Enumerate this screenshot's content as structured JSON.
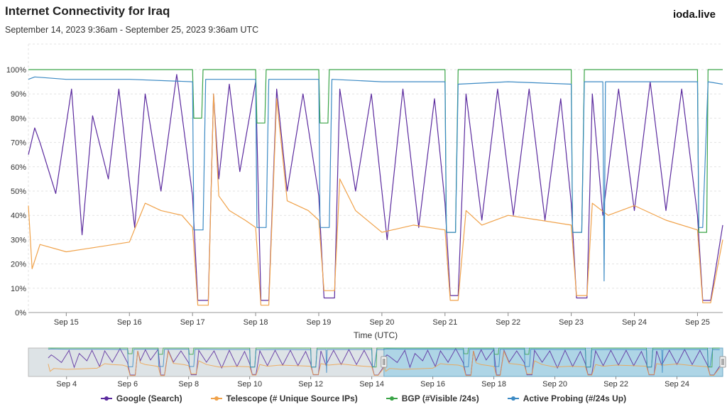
{
  "header": {
    "title": "Internet Connectivity for Iraq",
    "subtitle": "September 14, 2023 9:36am - September 25, 2023 9:36am UTC",
    "brand": "ioda.live"
  },
  "chart_data": {
    "type": "line",
    "xlabel": "Time (UTC)",
    "ylabel": "",
    "ylim": [
      0,
      100
    ],
    "xlim": [
      "2023-09-14T09:36",
      "2023-09-25T09:36"
    ],
    "y_ticks": [
      "0%",
      "10%",
      "20%",
      "30%",
      "40%",
      "50%",
      "60%",
      "70%",
      "80%",
      "90%",
      "100%"
    ],
    "x_ticks": [
      "Sep 15",
      "Sep 16",
      "Sep 17",
      "Sep 18",
      "Sep 19",
      "Sep 20",
      "Sep 21",
      "Sep 22",
      "Sep 23",
      "Sep 24",
      "Sep 25"
    ],
    "grid": true,
    "series": [
      {
        "name": "Google (Search)",
        "color": "#5b2a9e",
        "x": [
          "2023-09-14 09:36",
          "2023-09-14 12:00",
          "2023-09-14 14:00",
          "2023-09-14 20:00",
          "2023-09-15 02:00",
          "2023-09-15 06:00",
          "2023-09-15 10:00",
          "2023-09-15 16:00",
          "2023-09-15 20:00",
          "2023-09-16 02:00",
          "2023-09-16 06:00",
          "2023-09-16 12:00",
          "2023-09-16 18:00",
          "2023-09-17 00:00",
          "2023-09-17 02:00",
          "2023-09-17 06:00",
          "2023-09-17 08:00",
          "2023-09-17 10:00",
          "2023-09-17 14:00",
          "2023-09-17 18:00",
          "2023-09-18 00:00",
          "2023-09-18 02:00",
          "2023-09-18 05:00",
          "2023-09-18 08:00",
          "2023-09-18 12:00",
          "2023-09-18 18:00",
          "2023-09-19 00:00",
          "2023-09-19 02:00",
          "2023-09-19 06:00",
          "2023-09-19 08:00",
          "2023-09-19 14:00",
          "2023-09-19 20:00",
          "2023-09-20 02:00",
          "2023-09-20 08:00",
          "2023-09-20 14:00",
          "2023-09-20 20:00",
          "2023-09-21 00:00",
          "2023-09-21 02:00",
          "2023-09-21 05:00",
          "2023-09-21 08:00",
          "2023-09-21 14:00",
          "2023-09-21 20:00",
          "2023-09-22 02:00",
          "2023-09-22 08:00",
          "2023-09-22 14:00",
          "2023-09-22 20:00",
          "2023-09-23 00:00",
          "2023-09-23 02:00",
          "2023-09-23 06:00",
          "2023-09-23 08:00",
          "2023-09-23 12:00",
          "2023-09-23 18:00",
          "2023-09-24 00:00",
          "2023-09-24 06:00",
          "2023-09-24 12:00",
          "2023-09-24 18:00",
          "2023-09-25 00:00",
          "2023-09-25 02:00",
          "2023-09-25 05:00",
          "2023-09-25 09:36"
        ],
        "values": [
          65,
          76,
          70,
          49,
          92,
          32,
          81,
          55,
          92,
          35,
          90,
          50,
          98,
          48,
          5,
          5,
          90,
          55,
          94,
          58,
          95,
          5,
          5,
          92,
          50,
          90,
          48,
          6,
          6,
          92,
          50,
          90,
          30,
          92,
          35,
          88,
          45,
          7,
          7,
          90,
          38,
          92,
          40,
          92,
          38,
          88,
          45,
          6,
          6,
          90,
          40,
          92,
          42,
          95,
          42,
          92,
          40,
          5,
          5,
          36
        ]
      },
      {
        "name": "Telescope (# Unique Source IPs)",
        "color": "#f0a24a",
        "x": [
          "2023-09-14 09:36",
          "2023-09-14 11:00",
          "2023-09-14 14:00",
          "2023-09-15 00:00",
          "2023-09-15 12:00",
          "2023-09-16 00:00",
          "2023-09-16 06:00",
          "2023-09-16 12:00",
          "2023-09-16 20:00",
          "2023-09-17 00:00",
          "2023-09-17 02:00",
          "2023-09-17 06:00",
          "2023-09-17 08:00",
          "2023-09-17 10:00",
          "2023-09-17 14:00",
          "2023-09-17 20:00",
          "2023-09-18 00:00",
          "2023-09-18 02:00",
          "2023-09-18 05:00",
          "2023-09-18 08:00",
          "2023-09-18 12:00",
          "2023-09-18 20:00",
          "2023-09-19 00:00",
          "2023-09-19 02:00",
          "2023-09-19 06:00",
          "2023-09-19 08:00",
          "2023-09-19 14:00",
          "2023-09-20 00:00",
          "2023-09-20 12:00",
          "2023-09-21 00:00",
          "2023-09-21 02:00",
          "2023-09-21 05:00",
          "2023-09-21 08:00",
          "2023-09-21 14:00",
          "2023-09-22 00:00",
          "2023-09-22 12:00",
          "2023-09-23 00:00",
          "2023-09-23 02:00",
          "2023-09-23 06:00",
          "2023-09-23 08:00",
          "2023-09-23 14:00",
          "2023-09-24 00:00",
          "2023-09-24 12:00",
          "2023-09-25 00:00",
          "2023-09-25 02:00",
          "2023-09-25 05:00",
          "2023-09-25 09:36"
        ],
        "values": [
          44,
          18,
          28,
          25,
          27,
          29,
          45,
          42,
          40,
          35,
          3,
          3,
          90,
          48,
          42,
          38,
          35,
          3,
          3,
          88,
          46,
          42,
          38,
          9,
          9,
          55,
          42,
          33,
          36,
          34,
          5,
          5,
          42,
          36,
          40,
          38,
          36,
          7,
          7,
          45,
          40,
          44,
          38,
          34,
          4,
          4,
          30
        ]
      },
      {
        "name": "BGP (#Visible /24s)",
        "color": "#3aa447",
        "x": [
          "2023-09-14 09:36",
          "2023-09-17 00:00",
          "2023-09-17 00:30",
          "2023-09-17 02:00",
          "2023-09-17 03:30",
          "2023-09-17 04:00",
          "2023-09-18 00:00",
          "2023-09-18 00:30",
          "2023-09-18 02:00",
          "2023-09-18 03:30",
          "2023-09-18 04:00",
          "2023-09-19 00:00",
          "2023-09-19 00:30",
          "2023-09-19 02:00",
          "2023-09-19 03:30",
          "2023-09-19 04:00",
          "2023-09-21 00:00",
          "2023-09-21 00:30",
          "2023-09-21 02:00",
          "2023-09-21 04:00",
          "2023-09-21 05:00",
          "2023-09-23 00:00",
          "2023-09-23 00:30",
          "2023-09-23 02:00",
          "2023-09-23 04:00",
          "2023-09-23 05:00",
          "2023-09-25 00:00",
          "2023-09-25 00:30",
          "2023-09-25 02:00",
          "2023-09-25 03:30",
          "2023-09-25 04:00",
          "2023-09-25 09:36"
        ],
        "values": [
          100,
          100,
          80,
          80,
          80,
          100,
          100,
          78,
          78,
          78,
          100,
          100,
          78,
          78,
          78,
          100,
          100,
          33,
          33,
          33,
          100,
          100,
          33,
          33,
          33,
          100,
          100,
          33,
          33,
          33,
          100,
          100
        ]
      },
      {
        "name": "Active Probing (#/24s Up)",
        "color": "#3c8ac4",
        "x": [
          "2023-09-14 09:36",
          "2023-09-14 12:00",
          "2023-09-15 00:00",
          "2023-09-16 00:00",
          "2023-09-17 00:00",
          "2023-09-17 00:30",
          "2023-09-17 02:00",
          "2023-09-17 04:00",
          "2023-09-17 05:00",
          "2023-09-18 00:00",
          "2023-09-18 00:30",
          "2023-09-18 02:00",
          "2023-09-18 04:00",
          "2023-09-18 05:00",
          "2023-09-19 00:00",
          "2023-09-19 00:30",
          "2023-09-19 02:00",
          "2023-09-19 04:00",
          "2023-09-19 05:00",
          "2023-09-20 00:00",
          "2023-09-21 00:00",
          "2023-09-21 00:30",
          "2023-09-21 02:00",
          "2023-09-21 04:00",
          "2023-09-21 05:00",
          "2023-09-22 00:00",
          "2023-09-23 00:00",
          "2023-09-23 00:30",
          "2023-09-23 02:00",
          "2023-09-23 04:00",
          "2023-09-23 05:00",
          "2023-09-23 12:00",
          "2023-09-23 12:30",
          "2023-09-23 13:00",
          "2023-09-24 00:00",
          "2023-09-25 00:00",
          "2023-09-25 00:30",
          "2023-09-25 02:00",
          "2023-09-25 04:00",
          "2023-09-25 09:36"
        ],
        "values": [
          96,
          97,
          96,
          96,
          95,
          34,
          34,
          34,
          96,
          96,
          35,
          35,
          35,
          96,
          96,
          35,
          35,
          35,
          96,
          95,
          95,
          33,
          33,
          33,
          94,
          95,
          94,
          33,
          33,
          33,
          95,
          95,
          13,
          95,
          95,
          95,
          35,
          35,
          95,
          94
        ]
      }
    ],
    "navigator": {
      "x_ticks": [
        "Sep 4",
        "Sep 6",
        "Sep 8",
        "Sep 10",
        "Sep 12",
        "Sep 14",
        "Sep 16",
        "Sep 18",
        "Sep 20",
        "Sep 22",
        "Sep 24"
      ]
    }
  },
  "legend": [
    {
      "label": "Google (Search)",
      "color": "#5b2a9e"
    },
    {
      "label": "Telescope (# Unique Source IPs)",
      "color": "#f0a24a"
    },
    {
      "label": "BGP (#Visible /24s)",
      "color": "#3aa447"
    },
    {
      "label": "Active Probing (#/24s Up)",
      "color": "#3c8ac4"
    }
  ]
}
